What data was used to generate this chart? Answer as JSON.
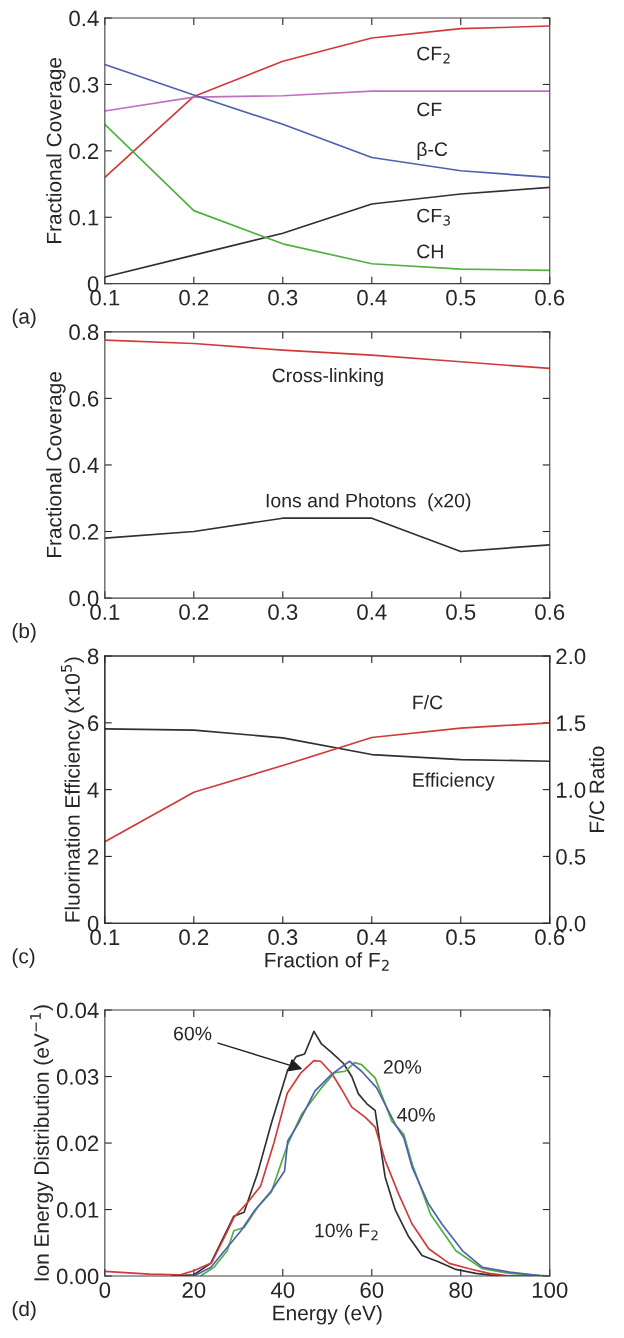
{
  "chart_data": [
    {
      "type": "line",
      "ylabel": "Fractional Coverage",
      "xlim": [
        0.1,
        0.6
      ],
      "xticks": [
        0.1,
        0.2,
        0.3,
        0.4,
        0.5,
        0.6
      ],
      "ylim": [
        0,
        0.4
      ],
      "yticks": [
        0,
        0.1,
        0.2,
        0.3,
        0.4
      ],
      "grid": false,
      "x": [
        0.1,
        0.2,
        0.3,
        0.4,
        0.5,
        0.6
      ],
      "series": [
        {
          "color": "#d03a3a",
          "values": [
            0.16,
            0.282,
            0.335,
            0.37,
            0.384,
            0.388
          ]
        },
        {
          "color": "#c070c0",
          "values": [
            0.26,
            0.281,
            0.283,
            0.29,
            0.29,
            0.29
          ]
        },
        {
          "color": "#5060b0",
          "values": [
            0.33,
            0.284,
            0.24,
            0.19,
            0.17,
            0.16
          ]
        },
        {
          "color": "#303030",
          "values": [
            0.01,
            0.043,
            0.076,
            0.12,
            0.135,
            0.145
          ]
        },
        {
          "color": "#50b040",
          "values": [
            0.24,
            0.11,
            0.06,
            0.03,
            0.022,
            0.02
          ]
        }
      ],
      "annotations": [
        "(a)",
        "CF$_{2}$",
        "CF",
        "β-C",
        "CF$_{3}$",
        "CH"
      ]
    },
    {
      "type": "line",
      "ylabel": "Fractional Coverage",
      "xlim": [
        0.1,
        0.6
      ],
      "xticks": [
        0.1,
        0.2,
        0.3,
        0.4,
        0.5,
        0.6
      ],
      "ylim": [
        0,
        0.8
      ],
      "yticks": [
        {
          "value": 0,
          "label": "0.0"
        },
        0.2,
        0.4,
        0.6,
        0.8
      ],
      "grid": false,
      "x": [
        0.1,
        0.2,
        0.3,
        0.4,
        0.5,
        0.6
      ],
      "series": [
        {
          "color": "#d03a3a",
          "values": [
            0.775,
            0.765,
            0.745,
            0.73,
            0.71,
            0.69
          ]
        },
        {
          "color": "#303030",
          "values": [
            0.18,
            0.2,
            0.24,
            0.24,
            0.14,
            0.16
          ]
        }
      ],
      "annotations": [
        "(b)",
        "Cross-linking",
        "Ions and Photons  (x20)"
      ]
    },
    {
      "type": "line",
      "xlabel": "Fraction of F$_{2}$",
      "ylabel": "Fluorination Efficiency (x10$^{5}$)",
      "y2label": "F/C Ratio",
      "xlim": [
        0.1,
        0.6
      ],
      "xticks": [
        0.1,
        0.2,
        0.3,
        0.4,
        0.5,
        0.6
      ],
      "ylim": [
        0,
        8
      ],
      "yticks": [
        0,
        2,
        4,
        6,
        8
      ],
      "y2lim": [
        0,
        2
      ],
      "y2ticks": [
        {
          "value": 0,
          "label": "0.0"
        },
        0.5,
        {
          "value": 1,
          "label": "1.0"
        },
        1.5,
        {
          "value": 2,
          "label": "2.0"
        }
      ],
      "grid": false,
      "x": [
        0.1,
        0.2,
        0.3,
        0.4,
        0.5,
        0.6
      ],
      "series": [
        {
          "color": "#303030",
          "values": [
            5.82,
            5.78,
            5.55,
            5.05,
            4.9,
            4.85
          ]
        },
        {
          "color": "#d03a3a",
          "axis": "y2",
          "values": [
            0.61,
            0.98,
            1.18,
            1.39,
            1.46,
            1.5
          ]
        }
      ],
      "annotations": [
        "(c)",
        "F/C",
        "Efficiency"
      ]
    },
    {
      "type": "line",
      "xlabel": "Energy (eV)",
      "ylabel": "Ion Energy Distribution (eV$^{−1}$)",
      "xlim": [
        0,
        100
      ],
      "xticks": [
        0,
        20,
        40,
        60,
        80,
        100
      ],
      "ylim": [
        0,
        0.04
      ],
      "yticks": [
        {
          "value": 0,
          "label": "0.00"
        },
        0.01,
        0.02,
        0.03,
        0.04
      ],
      "grid": false,
      "series": [
        {
          "color": "#303030",
          "x": [
            15,
            20,
            23.8,
            29,
            31.3,
            34.3,
            37.4,
            41.1,
            43,
            44.9,
            47,
            48.7,
            51,
            53.6,
            55.5,
            57,
            58.9,
            60.75,
            63,
            65.3,
            68.3,
            71.3,
            75.1,
            78.9,
            83.4,
            88.7,
            100
          ],
          "values": [
            0,
            0.0002,
            0.0019,
            0.009,
            0.0096,
            0.0154,
            0.0229,
            0.031,
            0.033,
            0.0334,
            0.0368,
            0.0349,
            0.0336,
            0.032,
            0.03,
            0.0274,
            0.0259,
            0.0249,
            0.0149,
            0.0099,
            0.0059,
            0.0031,
            0.0021,
            0.001,
            0.0004,
            0,
            0
          ]
        },
        {
          "color": "#d03a3a",
          "x": [
            0,
            10,
            17,
            20,
            24,
            27,
            29,
            32,
            35,
            38,
            41,
            44,
            47,
            48.5,
            51,
            53.2,
            55.5,
            58.5,
            60.75,
            63,
            66,
            69,
            72.8,
            77.4,
            81.9,
            86.4,
            91,
            100
          ],
          "values": [
            0.0007,
            0.0003,
            0.0002,
            0.0008,
            0.002,
            0.006,
            0.0088,
            0.011,
            0.0135,
            0.02,
            0.0275,
            0.0305,
            0.0324,
            0.0323,
            0.0305,
            0.0281,
            0.0254,
            0.0239,
            0.0224,
            0.0174,
            0.0124,
            0.0079,
            0.0041,
            0.0019,
            0.0011,
            0.0004,
            0,
            0
          ]
        },
        {
          "color": "#50b040",
          "x": [
            21.5,
            24.5,
            27.5,
            29,
            31.3,
            34.3,
            37.4,
            41.1,
            44.2,
            48.7,
            51.7,
            54,
            56.2,
            57.7,
            60.75,
            64.5,
            67.2,
            69.1,
            73.2,
            78.9,
            84.9,
            91,
            100
          ],
          "values": [
            0,
            0.0013,
            0.0038,
            0.0068,
            0.0073,
            0.0103,
            0.0126,
            0.0198,
            0.0243,
            0.0283,
            0.0306,
            0.0308,
            0.0321,
            0.0318,
            0.0298,
            0.0233,
            0.0213,
            0.0168,
            0.0093,
            0.0038,
            0.0011,
            0.0004,
            0
          ]
        },
        {
          "color": "#5060b0",
          "x": [
            20,
            23.8,
            27.5,
            30.6,
            33.6,
            37.4,
            40.4,
            41.1,
            43.4,
            47.2,
            50.9,
            55,
            57.7,
            61.1,
            65.3,
            67.2,
            69.1,
            72.8,
            75.8,
            80.4,
            84.9,
            91,
            98.5,
            100
          ],
          "values": [
            0,
            0.0013,
            0.0043,
            0.0068,
            0.0098,
            0.0128,
            0.0158,
            0.0203,
            0.0228,
            0.0278,
            0.0303,
            0.0323,
            0.0308,
            0.0283,
            0.0228,
            0.0208,
            0.0163,
            0.0108,
            0.0078,
            0.0038,
            0.0013,
            0.0006,
            0,
            0
          ]
        }
      ],
      "annotations": [
        "(d)",
        {
          "text": "60%",
          "x": 45,
          "y": 0.031
        },
        "20%",
        "40%",
        "10% F$_{2}$"
      ]
    }
  ]
}
